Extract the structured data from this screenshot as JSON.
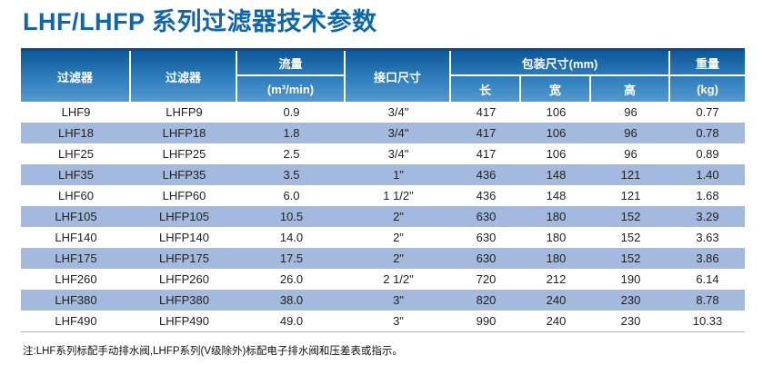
{
  "page": {
    "title": "LHF/LHFP 系列过滤器技术参数",
    "note": "注:LHF系列标配手动排水阀,LHFP系列(V级除外)标配电子排水阀和压差表或指示。"
  },
  "colors": {
    "title_blue": "#0f66ad",
    "header_gradient_top": "#0d589a",
    "header_gradient_bottom": "#5399cf",
    "top_rule_blue": "#114a7f",
    "stripe_blue": "#a3b9de",
    "body_text": "#222222"
  },
  "table": {
    "header": {
      "filter_lhf": "过滤器",
      "filter_lhfp": "过滤器",
      "flow_title": "流量",
      "flow_unit": "(m³/min)",
      "port_size": "接口尺寸",
      "package_group": "包装尺寸(mm)",
      "pkg_length": "长",
      "pkg_width": "宽",
      "pkg_height": "高",
      "weight_title": "重量",
      "weight_unit": "(kg)"
    },
    "columns": [
      "filter-lhf",
      "filter-lhfp",
      "flow",
      "port-size",
      "pkg-length",
      "pkg-width",
      "pkg-height",
      "weight"
    ],
    "rows": [
      [
        "LHF9",
        "LHFP9",
        "0.9",
        "3/4\"",
        "417",
        "106",
        "96",
        "0.77"
      ],
      [
        "LHF18",
        "LHFP18",
        "1.8",
        "3/4\"",
        "417",
        "106",
        "96",
        "0.78"
      ],
      [
        "LHF25",
        "LHFP25",
        "2.5",
        "3/4\"",
        "417",
        "106",
        "96",
        "0.89"
      ],
      [
        "LHF35",
        "LHFP35",
        "3.5",
        "1\"",
        "436",
        "148",
        "121",
        "1.40"
      ],
      [
        "LHF60",
        "LHFP60",
        "6.0",
        "1 1/2\"",
        "436",
        "148",
        "121",
        "1.68"
      ],
      [
        "LHF105",
        "LHFP105",
        "10.5",
        "2\"",
        "630",
        "180",
        "152",
        "3.29"
      ],
      [
        "LHF140",
        "LHFP140",
        "14.0",
        "2\"",
        "630",
        "180",
        "152",
        "3.63"
      ],
      [
        "LHF175",
        "LHFP175",
        "17.5",
        "2\"",
        "630",
        "180",
        "152",
        "3.86"
      ],
      [
        "LHF260",
        "LHFP260",
        "26.0",
        "2 1/2\"",
        "720",
        "212",
        "190",
        "6.14"
      ],
      [
        "LHF380",
        "LHFP380",
        "38.0",
        "3\"",
        "820",
        "240",
        "230",
        "8.78"
      ],
      [
        "LHF490",
        "LHFP490",
        "49.0",
        "3\"",
        "990",
        "240",
        "230",
        "10.33"
      ]
    ]
  }
}
